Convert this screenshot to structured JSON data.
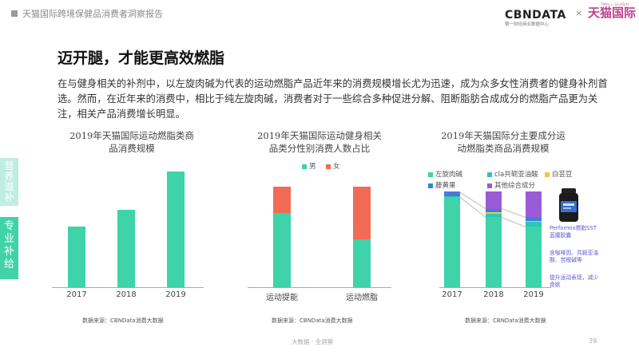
{
  "header": {
    "report_title": "天猫国际跨境保健品消费者洞察报告",
    "logo_cbndata": "CBNDATA",
    "logo_cbndata_sub": "第一财经商业数据中心",
    "logo_separator": "×",
    "logo_tmall": "天猫国际",
    "logo_tmall_sub": "TMALL GLOBAL"
  },
  "page_title": "迈开腿，才能更高效燃脂",
  "intro_text": "在与健身相关的补剂中，以左旋肉碱为代表的运动燃脂产品近年来的消费规模增长尤为迅速，成为众多女性消费者的健身补剂首选。然而，在近年来的消费中，相比于纯左旋肉碱，消费者对于一些综合多种促进分解、阻断脂肪合成成分的燃脂产品更为关注，相关产品消费增长明显。",
  "side_tabs": [
    {
      "label": "营养滋补"
    },
    {
      "label": "专业补给"
    }
  ],
  "colors": {
    "green": "#3ed3a8",
    "red": "#f26b57",
    "gold": "#f5c542",
    "blue": "#3a80d9",
    "purple": "#9b5bd6",
    "teal": "#2fc4b8"
  },
  "chart_data": [
    {
      "type": "bar",
      "title_line1": "2019年天猫国际运动燃脂类商",
      "title_line2": "品消费规模",
      "categories": [
        "2017",
        "2018",
        "2019"
      ],
      "values": [
        0.52,
        0.67,
        1.0
      ],
      "ylim": [
        0,
        1.1
      ],
      "source": "数据来源：CBNData消费大数据"
    },
    {
      "type": "bar",
      "stacked": true,
      "percent": true,
      "title_line1": "2019年天猫国际运动健身相关",
      "title_line2": "品类分性别消费人数占比",
      "categories": [
        "运动提能",
        "运动燃脂"
      ],
      "legend_position": "top",
      "series": [
        {
          "name": "男",
          "color": "#3ed3a8",
          "values": [
            0.74,
            0.48
          ]
        },
        {
          "name": "女",
          "color": "#f26b57",
          "values": [
            0.26,
            0.52
          ]
        }
      ],
      "source": "数据来源：CBNData消费大数据"
    },
    {
      "type": "bar",
      "stacked": true,
      "percent": true,
      "title_line1": "2019年天猫国际分主要成分运",
      "title_line2": "动燃脂类商品消费规模",
      "categories": [
        "2017",
        "2018",
        "2019"
      ],
      "legend_position": "top",
      "series": [
        {
          "name": "左旋肉碱",
          "color": "#3ed3a8",
          "values": [
            0.94,
            0.73,
            0.63
          ]
        },
        {
          "name": "cla共轭亚油酸",
          "color": "#2fc4b8",
          "values": [
            0.01,
            0.04,
            0.05
          ]
        },
        {
          "name": "白芸豆",
          "color": "#f5c542",
          "values": [
            0.0,
            0.01,
            0.01
          ]
        },
        {
          "name": "藤黄果",
          "color": "#3a80d9",
          "values": [
            0.04,
            0.04,
            0.04
          ]
        },
        {
          "name": "其他综合成分",
          "color": "#9b5bd6",
          "values": [
            0.01,
            0.18,
            0.27
          ]
        }
      ],
      "annotations": [
        "Performix燃脂SST",
        "蓝魔胶囊",
        "含咖啡因、共轭亚油",
        "酸、苦橙碱等",
        "提升运动表现，减少",
        "食欲"
      ],
      "source": "数据来源：CBNData消费大数据"
    }
  ],
  "footer": {
    "text": "大数据 · 全洞察",
    "page_number": "39"
  }
}
